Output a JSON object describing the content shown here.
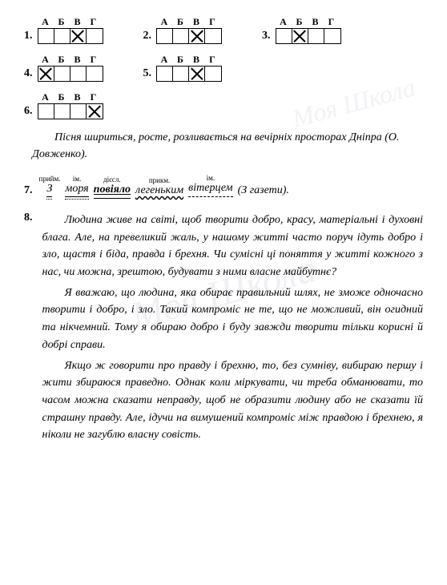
{
  "watermark": "Моя Школа",
  "mc_headers": [
    "А",
    "Б",
    "В",
    "Г"
  ],
  "questions": [
    {
      "num": "1.",
      "answer": 2
    },
    {
      "num": "2.",
      "answer": 2
    },
    {
      "num": "3.",
      "answer": 1
    },
    {
      "num": "4.",
      "answer": 0
    },
    {
      "num": "5.",
      "answer": 2
    },
    {
      "num": "6.",
      "answer": 3
    }
  ],
  "sentence6": "Пісня шириться, росте, розливається на вечірніх просторах Дніпра (О. Довженко).",
  "q7": {
    "num": "7.",
    "words": [
      {
        "pos": "прийм.",
        "text": "З",
        "style": "dashdot"
      },
      {
        "pos": "ім.",
        "text": "моря",
        "style": "dashdot"
      },
      {
        "pos": "дієсл.",
        "text": "повіяло",
        "style": "double"
      },
      {
        "pos": "прикм.",
        "text": "легеньким",
        "style": "wavy"
      },
      {
        "pos": "ім.",
        "text": "вітерцем",
        "style": "dashed"
      }
    ],
    "tail": "(З газети)."
  },
  "q8": {
    "num": "8.",
    "paragraphs": [
      "Людина живе на світі, щоб творити добро, красу, матеріальні і духовні блага. Але, на превеликий жаль, у нашому житті часто поруч ідуть добро і зло, щастя і біда, правда і брехня. Чи сумісні ці поняття у житті кожного з нас, чи можна, зрештою, будувати з ними власне майбутнє?",
      "Я вважаю, що людина, яка обирає правильний шлях, не зможе одночасно творити і добро, і зло. Такий компроміс не те, що не можливий, він огидний та нікчемний. Тому я обираю добро і буду завжди творити тільки корисні й добрі справи.",
      "Якщо ж говорити про правду і брехню, то, без сумніву, вибираю першу і жити збираюся праведно. Однак коли міркувати, чи треба обманювати, то часом можна сказати неправду, щоб не образити людину або не сказати їй страшну правду. Але, ідучи на вимушений компроміс між правдою і брехнею, я ніколи не загублю власну совість."
    ]
  }
}
